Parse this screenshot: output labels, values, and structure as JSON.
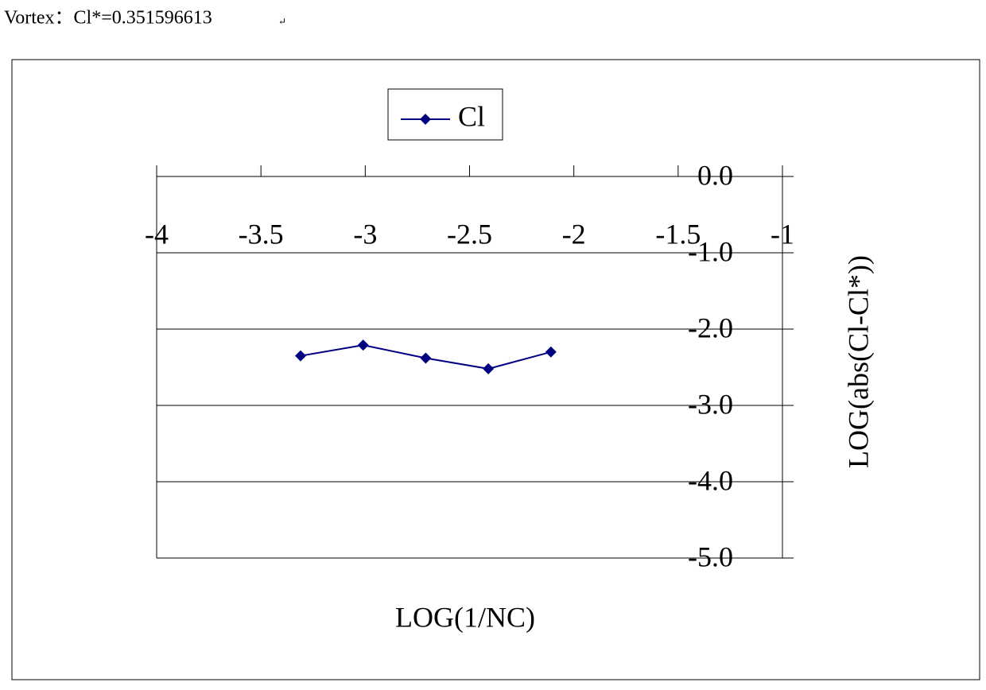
{
  "caption": "Vortex：Cl*=0.351596613",
  "chart_data": {
    "type": "line",
    "x_label": "LOG(1/NC)",
    "y_label": "LOG(abs(Cl-Cl*))",
    "series": [
      {
        "name": "Cl",
        "color": "#000080",
        "x": [
          -3.31,
          -3.01,
          -2.71,
          -2.41,
          -2.11
        ],
        "values": [
          -2.35,
          -2.21,
          -2.38,
          -2.52,
          -2.3
        ]
      }
    ],
    "xlim": [
      -4,
      -1
    ],
    "xticks": [
      -4,
      -3.5,
      -3,
      -2.5,
      -2,
      -1.5,
      -1
    ],
    "ylim": [
      -5,
      0
    ],
    "yticks": [
      {
        "value": 0,
        "label": "0.0"
      },
      {
        "value": -1,
        "label": "-1.0"
      },
      {
        "value": -2,
        "label": "-2.0"
      },
      {
        "value": -3,
        "label": "-3.0"
      },
      {
        "value": -4,
        "label": "-4.0"
      },
      {
        "value": -5,
        "label": "-5.0"
      }
    ],
    "grid": true,
    "legend": "top"
  }
}
